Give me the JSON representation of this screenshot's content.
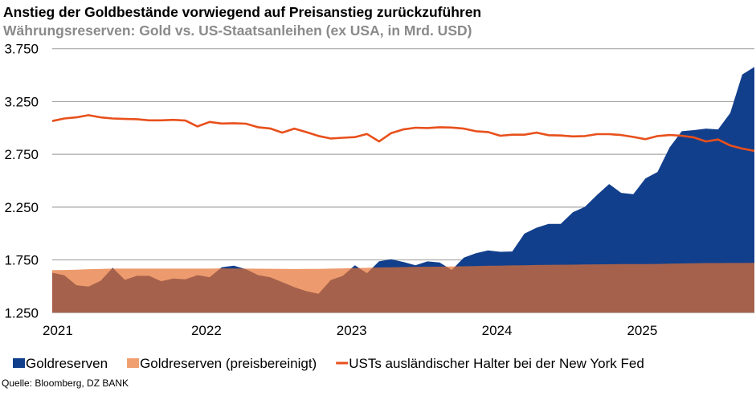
{
  "chart_data": {
    "type": "area",
    "title": "Anstieg der Goldbestände vorwiegend auf Preisanstieg zurückzuführen",
    "subtitle": "Währungsreserven: Gold vs. US-Staatsanleihen (ex USA, in Mrd. USD)",
    "source": "Quelle: Bloomberg, DZ BANK",
    "xlabel": "",
    "ylabel": "",
    "ylim": [
      1250,
      3750
    ],
    "yticks": [
      "1.250",
      "1.750",
      "2.250",
      "2.750",
      "3.250",
      "3.750"
    ],
    "ytick_values": [
      1250,
      1750,
      2250,
      2750,
      3250,
      3750
    ],
    "xticks": [
      "2021",
      "2022",
      "2023",
      "2024",
      "2025"
    ],
    "grid": true,
    "legend_position": "bottom",
    "x": [
      "2020-12",
      "2021-01",
      "2021-02",
      "2021-03",
      "2021-04",
      "2021-05",
      "2021-06",
      "2021-07",
      "2021-08",
      "2021-09",
      "2021-10",
      "2021-11",
      "2021-12",
      "2022-01",
      "2022-02",
      "2022-03",
      "2022-04",
      "2022-05",
      "2022-06",
      "2022-07",
      "2022-08",
      "2022-09",
      "2022-10",
      "2022-11",
      "2022-12",
      "2023-01",
      "2023-02",
      "2023-03",
      "2023-04",
      "2023-05",
      "2023-06",
      "2023-07",
      "2023-08",
      "2023-09",
      "2023-10",
      "2023-11",
      "2023-12",
      "2024-01",
      "2024-02",
      "2024-03",
      "2024-04",
      "2024-05",
      "2024-06",
      "2024-07",
      "2024-08",
      "2024-09",
      "2024-10",
      "2024-11",
      "2024-12",
      "2025-01",
      "2025-02",
      "2025-03",
      "2025-04",
      "2025-05",
      "2025-06",
      "2025-07",
      "2025-08",
      "2025-09",
      "2025-10"
    ],
    "series": [
      {
        "name": "Goldreserven",
        "kind": "area",
        "color": "#123f8c",
        "values": [
          1629,
          1604,
          1510,
          1497,
          1553,
          1675,
          1561,
          1599,
          1599,
          1548,
          1573,
          1566,
          1606,
          1586,
          1680,
          1695,
          1662,
          1606,
          1586,
          1540,
          1492,
          1454,
          1429,
          1558,
          1599,
          1700,
          1624,
          1738,
          1756,
          1731,
          1700,
          1736,
          1726,
          1655,
          1771,
          1814,
          1840,
          1827,
          1830,
          1999,
          2055,
          2091,
          2091,
          2202,
          2253,
          2365,
          2469,
          2385,
          2372,
          2522,
          2583,
          2816,
          2969,
          2979,
          2994,
          2986,
          3141,
          3506,
          3577
        ]
      },
      {
        "name": "Goldreserven (preisbereinigt)",
        "kind": "area",
        "color": "#f0a070",
        "values": [
          1654,
          1655,
          1657,
          1662,
          1665,
          1668,
          1668,
          1668,
          1668,
          1668,
          1668,
          1668,
          1668,
          1668,
          1670,
          1669,
          1668,
          1667,
          1666,
          1665,
          1664,
          1665,
          1665,
          1668,
          1670,
          1672,
          1675,
          1678,
          1680,
          1682,
          1684,
          1685,
          1686,
          1688,
          1690,
          1692,
          1694,
          1696,
          1698,
          1700,
          1702,
          1703,
          1704,
          1705,
          1707,
          1708,
          1709,
          1710,
          1710,
          1711,
          1712,
          1714,
          1716,
          1718,
          1720,
          1720,
          1721,
          1721,
          1722
        ]
      },
      {
        "name": "USTs ausländischer Halter bei der New York Fed",
        "kind": "line",
        "color": "#e8501c",
        "values": [
          3065,
          3090,
          3100,
          3121,
          3100,
          3090,
          3085,
          3083,
          3072,
          3072,
          3077,
          3070,
          3014,
          3057,
          3042,
          3045,
          3040,
          3007,
          2995,
          2956,
          2994,
          2960,
          2924,
          2900,
          2907,
          2913,
          2943,
          2872,
          2951,
          2986,
          3002,
          2999,
          3007,
          3004,
          2994,
          2969,
          2961,
          2926,
          2936,
          2936,
          2956,
          2931,
          2928,
          2920,
          2923,
          2941,
          2941,
          2933,
          2915,
          2893,
          2923,
          2933,
          2926,
          2910,
          2872,
          2890,
          2834,
          2804,
          2783
        ]
      }
    ]
  }
}
